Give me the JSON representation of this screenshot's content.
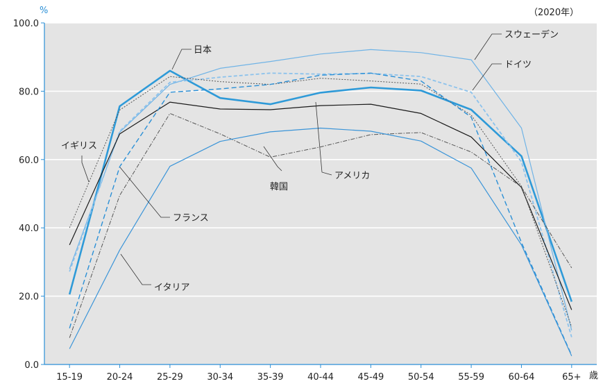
{
  "chart_data": {
    "type": "line",
    "y_unit": "%",
    "x_unit": "歳",
    "note": "（2020年）",
    "ylim": [
      0,
      100
    ],
    "y_ticks": [
      "0.0",
      "20.0",
      "40.0",
      "60.0",
      "80.0",
      "100.0"
    ],
    "grid": true,
    "categories": [
      "15-19",
      "20-24",
      "25-29",
      "30-34",
      "35-39",
      "40-44",
      "45-49",
      "50-54",
      "55-59",
      "60-64",
      "65+"
    ],
    "series": [
      {
        "name": "日本",
        "color": "#2e9ad8",
        "dash": "solid",
        "width": 2.6,
        "values": [
          20.5,
          75.6,
          86.0,
          78.0,
          76.2,
          79.6,
          81.1,
          80.2,
          74.6,
          61.0,
          18.4
        ]
      },
      {
        "name": "スウェーデン",
        "color": "#6fb3e6",
        "dash": "solid",
        "width": 1.2,
        "values": [
          28.0,
          68.0,
          82.0,
          86.7,
          88.7,
          90.9,
          92.2,
          91.3,
          89.2,
          69.2,
          10.0
        ]
      },
      {
        "name": "ドイツ",
        "color": "#8cc2ec",
        "dash": "5,3",
        "width": 1.8,
        "values": [
          27.2,
          68.3,
          82.6,
          84.1,
          85.3,
          85.0,
          85.2,
          84.3,
          79.7,
          59.3,
          8.0
        ]
      },
      {
        "name": "アメリカ",
        "color": "#1a1a1a",
        "dash": "solid",
        "width": 1.2,
        "values": [
          35.0,
          67.5,
          76.8,
          74.8,
          74.6,
          75.8,
          76.2,
          73.5,
          66.6,
          51.8,
          16.0
        ]
      },
      {
        "name": "イギリス",
        "color": "#555555",
        "dash": "2,2",
        "width": 1.0,
        "values": [
          40.0,
          74.5,
          84.3,
          82.8,
          82.0,
          83.8,
          83.0,
          82.1,
          73.0,
          52.2,
          11.0
        ]
      },
      {
        "name": "フランス",
        "color": "#2a8fd6",
        "dash": "7,4",
        "width": 1.4,
        "values": [
          10.6,
          57.9,
          79.7,
          80.7,
          82.0,
          84.7,
          85.3,
          83.0,
          72.4,
          35.7,
          2.7
        ]
      },
      {
        "name": "韓国",
        "color": "#555555",
        "dash": "6,2,1.5,2",
        "width": 1.0,
        "values": [
          7.8,
          49.5,
          73.5,
          67.5,
          60.7,
          63.7,
          67.3,
          67.9,
          62.2,
          52.0,
          28.3
        ]
      },
      {
        "name": "イタリア",
        "color": "#3a94d8",
        "dash": "solid",
        "width": 1.2,
        "values": [
          4.6,
          33.5,
          58.0,
          65.3,
          68.1,
          69.2,
          68.3,
          65.4,
          57.5,
          35.0,
          2.5
        ]
      }
    ],
    "labels": {
      "japan": "日本",
      "sweden": "スウェーデン",
      "germany": "ドイツ",
      "usa": "アメリカ",
      "uk": "イギリス",
      "france": "フランス",
      "korea": "韓国",
      "italy": "イタリア"
    }
  }
}
